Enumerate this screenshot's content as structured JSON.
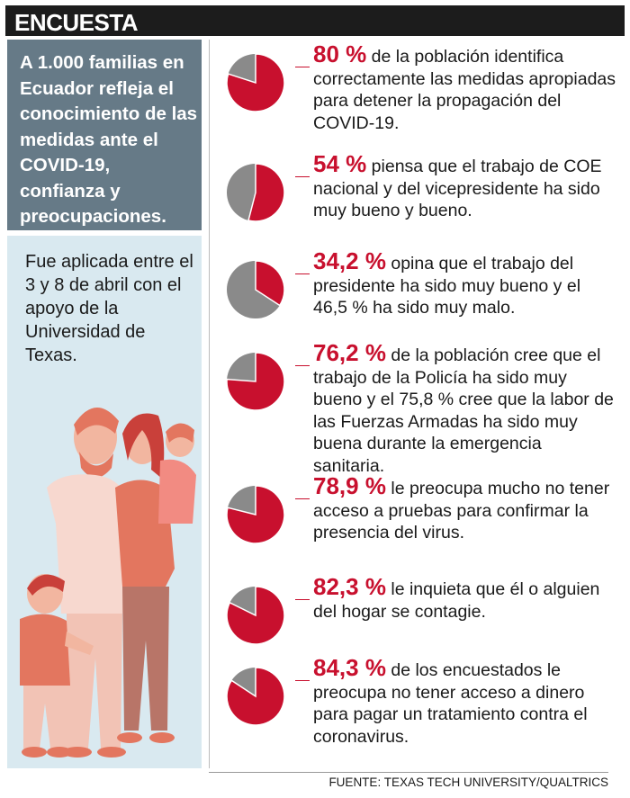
{
  "header": {
    "title": "ENCUESTA"
  },
  "intro": {
    "text": "A 1.000 familias en Ecuador refleja el conocimiento de las medidas ante el COVID-19, confianza y preocupaciones."
  },
  "note": {
    "text": "Fue aplicada entre el 3 y 8 de abril con el apoyo de la Universidad de Texas."
  },
  "colors": {
    "accent": "#c8102e",
    "pie_rest": "#8a8a8a",
    "intro_bg": "#667a87",
    "panel_bg": "#d9e9f0"
  },
  "items": [
    {
      "value": 80,
      "pct": "80 %",
      "text": " de la población identifica correctamente las medidas apropia­das para detener la propagación del COVID-19."
    },
    {
      "value": 54,
      "pct": "54 %",
      "text": " piensa que el trabajo de COE nacional y del vicepresidente ha sido muy bueno y bueno."
    },
    {
      "value": 34.2,
      "pct": "34,2 %",
      "text": " opina que el trabajo del presidente ha sido muy bueno y el 46,5 % ha sido muy malo."
    },
    {
      "value": 76.2,
      "pct": "76,2 %",
      "text": " de la población cree que el trabajo de la Policía ha sido muy bueno y el 75,8 % cree que la labor de las Fuerzas Armadas ha sido muy buena durante la emergencia sanitaria."
    },
    {
      "value": 78.9,
      "pct": "78,9 %",
      "text": " le preocupa mucho no tener acceso a pruebas para confirmar la presencia del virus."
    },
    {
      "value": 82.3,
      "pct": "82,3 %",
      "text": " le inquieta que él o alguien del hogar se contagie."
    },
    {
      "value": 84.3,
      "pct": "84,3 %",
      "text": " de los encuestados le preocupa no tener acceso a dinero para pagar un tratamiento contra el coronavirus."
    }
  ],
  "source": {
    "text": "FUENTE: TEXAS TECH UNIVERSITY/QUALTRICS"
  }
}
